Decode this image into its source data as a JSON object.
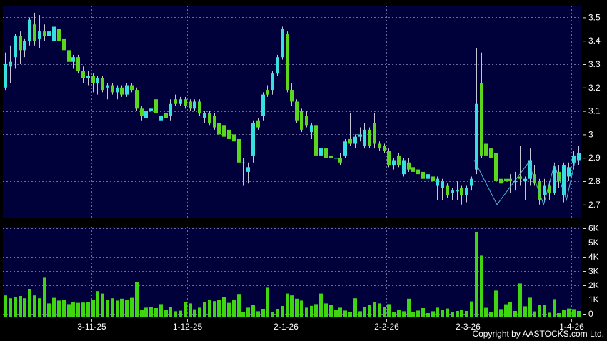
{
  "chart_data": {
    "type": "candlestick",
    "title": "",
    "layout_hints": {
      "grid": "dashed",
      "legend": "none",
      "axis_side": "right",
      "panes": [
        "price",
        "volume"
      ]
    },
    "price_axis": {
      "min": 2.7,
      "max": 3.5,
      "step": 0.1,
      "tick_labels": [
        "3.5",
        "3.4",
        "3.3",
        "3.2",
        "3.1",
        "3",
        "2.9",
        "2.8",
        "2.7"
      ],
      "tick_values": [
        3.5,
        3.4,
        3.3,
        3.2,
        3.1,
        3.0,
        2.9,
        2.8,
        2.7
      ]
    },
    "volume_axis": {
      "min_k": 0,
      "max_k": 6,
      "tick_labels": [
        "6K",
        "5K",
        "4K",
        "3K",
        "2K",
        "1K",
        "0"
      ],
      "tick_values_k": [
        6,
        5,
        4,
        3,
        2,
        1,
        0
      ]
    },
    "x_axis": {
      "tick_dates": [
        {
          "label": "3-11-25",
          "index": 17.8
        },
        {
          "label": "1-12-25",
          "index": 37.5
        },
        {
          "label": "2-1-26",
          "index": 57.7
        },
        {
          "label": "2-2-26",
          "index": 78.5
        },
        {
          "label": "2-3-26",
          "index": 95.3
        },
        {
          "label": "1-4-26",
          "index": 116.6
        }
      ]
    },
    "series": {
      "ohlcv_columns": [
        "open",
        "high",
        "low",
        "close",
        "volume_k"
      ],
      "candles": [
        [
          3.2,
          3.35,
          3.19,
          3.3,
          1.29
        ],
        [
          3.29,
          3.38,
          3.22,
          3.31,
          1.09
        ],
        [
          3.33,
          3.43,
          3.28,
          3.42,
          1.2
        ],
        [
          3.42,
          3.44,
          3.3,
          3.36,
          1.25
        ],
        [
          3.36,
          3.41,
          3.33,
          3.4,
          1.09
        ],
        [
          3.4,
          3.5,
          3.38,
          3.49,
          1.75
        ],
        [
          3.47,
          3.52,
          3.38,
          3.4,
          1.29
        ],
        [
          3.41,
          3.51,
          3.37,
          3.44,
          1.09
        ],
        [
          3.44,
          3.47,
          3.4,
          3.42,
          2.58
        ],
        [
          3.42,
          3.46,
          3.39,
          3.44,
          0.73
        ],
        [
          3.4,
          3.47,
          3.39,
          3.46,
          1.12
        ],
        [
          3.45,
          3.46,
          3.39,
          3.4,
          0.93
        ],
        [
          3.41,
          3.42,
          3.35,
          3.36,
          0.95
        ],
        [
          3.36,
          3.38,
          3.3,
          3.31,
          0.68
        ],
        [
          3.31,
          3.34,
          3.28,
          3.33,
          0.84
        ],
        [
          3.33,
          3.34,
          3.26,
          3.27,
          0.77
        ],
        [
          3.27,
          3.29,
          3.22,
          3.24,
          0.79
        ],
        [
          3.24,
          3.27,
          3.21,
          3.25,
          0.84
        ],
        [
          3.25,
          3.26,
          3.18,
          3.22,
          0.99
        ],
        [
          3.22,
          3.25,
          3.17,
          3.24,
          1.59
        ],
        [
          3.24,
          3.25,
          3.18,
          3.19,
          1.42
        ],
        [
          3.2,
          3.22,
          3.15,
          3.21,
          0.95
        ],
        [
          3.21,
          3.22,
          3.17,
          3.18,
          1.09
        ],
        [
          3.18,
          3.21,
          3.15,
          3.2,
          0.93
        ],
        [
          3.2,
          3.21,
          3.16,
          3.17,
          1.06
        ],
        [
          3.17,
          3.22,
          3.16,
          3.21,
          0.99
        ],
        [
          3.21,
          3.22,
          3.18,
          3.19,
          1.12
        ],
        [
          3.19,
          3.2,
          3.1,
          3.11,
          2.25
        ],
        [
          3.11,
          3.12,
          3.06,
          3.08,
          0.26
        ],
        [
          3.07,
          3.1,
          3.03,
          3.1,
          0.43
        ],
        [
          3.1,
          3.12,
          3.06,
          3.11,
          0.46
        ],
        [
          3.15,
          3.16,
          3.08,
          3.09,
          0.4
        ],
        [
          3.06,
          3.08,
          3.0,
          3.08,
          0.68
        ],
        [
          3.09,
          3.1,
          3.05,
          3.07,
          0.3
        ],
        [
          3.08,
          3.15,
          3.06,
          3.13,
          0.46
        ],
        [
          3.15,
          3.17,
          3.12,
          3.13,
          0.18
        ],
        [
          3.13,
          3.16,
          3.12,
          3.15,
          0.22
        ],
        [
          3.15,
          3.16,
          3.11,
          3.12,
          0.84
        ],
        [
          3.14,
          3.15,
          3.1,
          3.11,
          0.73
        ],
        [
          3.11,
          3.15,
          3.1,
          3.14,
          0.32
        ],
        [
          3.14,
          3.15,
          3.08,
          3.09,
          0.43
        ],
        [
          3.07,
          3.1,
          3.05,
          3.09,
          0.84
        ],
        [
          3.09,
          3.1,
          3.04,
          3.05,
          0.96
        ],
        [
          3.08,
          3.09,
          3.02,
          3.03,
          0.89
        ],
        [
          3.05,
          3.06,
          2.99,
          3.0,
          0.96
        ],
        [
          3.04,
          3.05,
          2.98,
          2.99,
          1.17
        ],
        [
          3.02,
          3.03,
          2.97,
          2.98,
          0.77
        ],
        [
          3.0,
          3.01,
          2.96,
          2.97,
          0.96
        ],
        [
          2.98,
          2.99,
          2.87,
          2.88,
          1.39
        ],
        [
          2.88,
          2.9,
          2.78,
          2.88,
          0.1
        ],
        [
          2.84,
          2.88,
          2.79,
          2.86,
          0.43
        ],
        [
          2.91,
          3.06,
          2.88,
          3.05,
          0.6
        ],
        [
          3.06,
          3.07,
          3.02,
          3.03,
          0.18
        ],
        [
          3.08,
          3.18,
          3.06,
          3.17,
          0.35
        ],
        [
          3.19,
          3.21,
          3.16,
          3.17,
          1.83
        ],
        [
          3.19,
          3.27,
          3.17,
          3.26,
          0.15
        ],
        [
          3.26,
          3.34,
          3.25,
          3.33,
          0.35
        ],
        [
          3.33,
          3.46,
          3.32,
          3.45,
          0.55
        ],
        [
          3.43,
          3.44,
          3.18,
          3.19,
          1.42
        ],
        [
          3.19,
          3.22,
          3.12,
          3.14,
          1.29
        ],
        [
          3.14,
          3.15,
          3.05,
          3.06,
          1.06
        ],
        [
          3.1,
          3.11,
          3.01,
          3.02,
          0.93
        ],
        [
          3.08,
          3.1,
          3.03,
          3.04,
          0.43
        ],
        [
          3.01,
          3.05,
          2.98,
          3.04,
          0.56
        ],
        [
          3.04,
          3.05,
          2.9,
          2.91,
          0.68
        ],
        [
          2.91,
          2.95,
          2.88,
          2.94,
          1.42
        ],
        [
          2.94,
          2.95,
          2.89,
          2.9,
          0.73
        ],
        [
          2.91,
          2.92,
          2.86,
          2.9,
          0.64
        ],
        [
          2.9,
          2.91,
          2.84,
          2.9,
          0.3
        ],
        [
          2.9,
          2.92,
          2.87,
          2.88,
          0.43
        ],
        [
          2.91,
          2.98,
          2.9,
          2.97,
          0.23
        ],
        [
          2.98,
          3.09,
          2.95,
          2.96,
          0.13
        ],
        [
          2.96,
          3.0,
          2.94,
          2.99,
          1.09
        ],
        [
          2.99,
          3.03,
          2.97,
          3.0,
          0.18
        ],
        [
          2.95,
          3.05,
          2.94,
          3.02,
          0.46
        ],
        [
          3.02,
          3.03,
          2.94,
          2.95,
          0.64
        ],
        [
          3.05,
          3.09,
          2.94,
          2.96,
          0.84
        ],
        [
          2.96,
          2.97,
          2.93,
          2.94,
          0.73
        ],
        [
          2.95,
          2.96,
          2.92,
          2.93,
          0.46
        ],
        [
          2.93,
          2.94,
          2.86,
          2.87,
          0.68
        ],
        [
          2.87,
          2.9,
          2.85,
          2.89,
          0.1
        ],
        [
          2.91,
          2.92,
          2.86,
          2.87,
          0.3
        ],
        [
          2.83,
          2.9,
          2.82,
          2.89,
          0.18
        ],
        [
          2.88,
          2.9,
          2.84,
          2.85,
          1.06
        ],
        [
          2.86,
          2.88,
          2.83,
          2.84,
          0.1
        ],
        [
          2.85,
          2.88,
          2.82,
          2.83,
          0.23
        ],
        [
          2.84,
          2.85,
          2.8,
          2.81,
          0.4
        ],
        [
          2.81,
          2.84,
          2.79,
          2.83,
          0.05
        ],
        [
          2.82,
          2.83,
          2.79,
          2.8,
          0.18
        ],
        [
          2.78,
          2.82,
          2.72,
          2.81,
          0.43
        ],
        [
          2.77,
          2.81,
          2.72,
          2.8,
          0.25
        ],
        [
          2.78,
          2.79,
          2.73,
          2.74,
          0.37
        ],
        [
          2.75,
          2.77,
          2.72,
          2.76,
          0.13
        ],
        [
          2.76,
          2.8,
          2.72,
          2.76,
          0.2
        ],
        [
          2.77,
          2.78,
          2.7,
          2.74,
          0.3
        ],
        [
          2.74,
          2.78,
          2.71,
          2.77,
          0.2
        ],
        [
          2.78,
          2.82,
          2.76,
          2.81,
          0.87
        ],
        [
          2.85,
          3.37,
          2.83,
          3.13,
          5.75
        ],
        [
          3.22,
          3.35,
          2.9,
          2.91,
          4.08
        ],
        [
          2.96,
          3.0,
          2.89,
          2.91,
          0.42
        ],
        [
          2.94,
          2.95,
          2.81,
          2.9,
          0.1
        ],
        [
          2.92,
          2.93,
          2.77,
          2.8,
          1.63
        ],
        [
          2.81,
          2.84,
          2.76,
          2.79,
          0.33
        ],
        [
          2.81,
          2.84,
          2.76,
          2.8,
          0.67
        ],
        [
          2.81,
          2.83,
          2.75,
          2.8,
          0.8
        ],
        [
          2.8,
          2.84,
          2.76,
          2.8,
          0.2
        ],
        [
          2.82,
          2.95,
          2.78,
          2.81,
          2.13
        ],
        [
          2.8,
          2.82,
          2.72,
          2.81,
          0.53
        ],
        [
          2.81,
          2.94,
          2.78,
          2.89,
          1.13
        ],
        [
          2.83,
          2.87,
          2.78,
          2.79,
          0.17
        ],
        [
          2.8,
          2.81,
          2.7,
          2.72,
          0.63
        ],
        [
          2.74,
          2.81,
          2.71,
          2.78,
          0.63
        ],
        [
          2.78,
          2.8,
          2.72,
          2.75,
          0.08
        ],
        [
          2.75,
          2.88,
          2.74,
          2.86,
          1.03
        ],
        [
          2.84,
          2.87,
          2.77,
          2.8,
          0.05
        ],
        [
          2.74,
          2.88,
          2.71,
          2.87,
          0.3
        ],
        [
          2.82,
          2.88,
          2.8,
          2.86,
          0.37
        ],
        [
          2.88,
          2.93,
          2.85,
          2.91,
          0.33
        ],
        [
          2.89,
          2.95,
          2.87,
          2.92,
          0.2
        ]
      ],
      "overlay_line_points": [
        [
          96.6,
          2.89
        ],
        [
          101.3,
          2.7
        ],
        [
          107.8,
          2.88
        ],
        [
          110.9,
          2.7
        ],
        [
          113.1,
          2.87
        ],
        [
          115.6,
          2.72
        ],
        [
          117.6,
          2.91
        ]
      ]
    },
    "colors": {
      "background": "#000000",
      "pane_background": "#00003a",
      "grid": "#9898c8",
      "up_candle": "#38dfe0",
      "down_candle": "#5ad71d",
      "wick": "#c6c6d2",
      "volume_bar": "#3fd511",
      "overlay_line": "#55b4d4",
      "axis_text": "#ffffff"
    },
    "footer_copyright": "Copyright by AASTOCKS.com Ltd."
  }
}
